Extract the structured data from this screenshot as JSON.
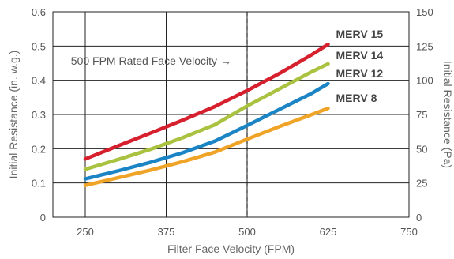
{
  "chart_data": {
    "type": "line",
    "xlabel": "Filter Face Velocity (FPM)",
    "ylabel": "Initial Resistance (in. w.g.)",
    "y2label": "Initial Resistance (Pa)",
    "xlim": [
      200,
      750
    ],
    "ylim": [
      0,
      0.6
    ],
    "y2lim": [
      0,
      150
    ],
    "x_ticks": [
      "250",
      "375",
      "500",
      "625",
      "750"
    ],
    "y_ticks": [
      "0",
      "0.1",
      "0.2",
      "0.3",
      "0.4",
      "0.5",
      "0.6"
    ],
    "y2_ticks": [
      "0",
      "25",
      "50",
      "75",
      "100",
      "125",
      "150"
    ],
    "grid": true,
    "x": [
      250,
      300,
      350,
      400,
      450,
      500,
      550,
      600,
      625
    ],
    "series": [
      {
        "name": "MERV 15",
        "color": "#d6202e",
        "values": [
          0.17,
          0.208,
          0.245,
          0.283,
          0.323,
          0.37,
          0.42,
          0.475,
          0.505
        ]
      },
      {
        "name": "MERV 14",
        "color": "#a9c23f",
        "values": [
          0.14,
          0.168,
          0.198,
          0.232,
          0.27,
          0.325,
          0.375,
          0.425,
          0.448
        ]
      },
      {
        "name": "MERV 12",
        "color": "#1b84c5",
        "values": [
          0.112,
          0.135,
          0.16,
          0.188,
          0.222,
          0.268,
          0.315,
          0.362,
          0.39
        ]
      },
      {
        "name": "MERV 8",
        "color": "#f0a427",
        "values": [
          0.093,
          0.115,
          0.137,
          0.162,
          0.19,
          0.228,
          0.265,
          0.3,
          0.318
        ]
      }
    ],
    "annotation": {
      "text": "500 FPM Rated Face Velocity",
      "x": 500,
      "arrow": "→"
    }
  }
}
